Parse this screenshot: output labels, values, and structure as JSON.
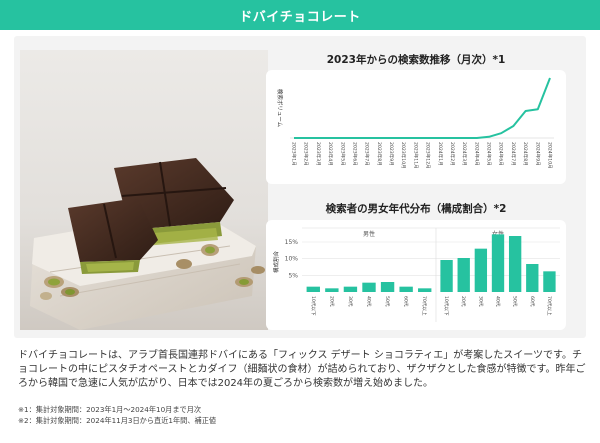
{
  "header": {
    "title": "ドバイチョコレート"
  },
  "chart1": {
    "title": "2023年からの検索数推移（月次）*1",
    "ylabel": "検索ボリューム",
    "months": [
      "2023年1月",
      "2023年2月",
      "2023年3月",
      "2023年4月",
      "2023年5月",
      "2023年6月",
      "2023年7月",
      "2023年8月",
      "2023年9月",
      "2023年10月",
      "2023年11月",
      "2023年12月",
      "2024年1月",
      "2024年2月",
      "2024年3月",
      "2024年4月",
      "2024年5月",
      "2024年6月",
      "2024年7月",
      "2024年8月",
      "2024年9月",
      "2024年10月"
    ]
  },
  "chart2": {
    "title": "検索者の男女年代分布（構成割合）*2",
    "ylabel": "構成割合",
    "yticks": [
      "15%",
      "10%",
      "5%"
    ],
    "male_label": "男性",
    "female_label": "女性",
    "age_labels": [
      "10代以下",
      "20代",
      "30代",
      "40代",
      "50代",
      "60代",
      "70代以上"
    ]
  },
  "chart_data": [
    {
      "type": "line",
      "title": "2023年からの検索数推移（月次）*1",
      "ylabel": "検索ボリューム",
      "x": [
        "2023年1月",
        "2023年2月",
        "2023年3月",
        "2023年4月",
        "2023年5月",
        "2023年6月",
        "2023年7月",
        "2023年8月",
        "2023年9月",
        "2023年10月",
        "2023年11月",
        "2023年12月",
        "2024年1月",
        "2024年2月",
        "2024年3月",
        "2024年4月",
        "2024年5月",
        "2024年6月",
        "2024年7月",
        "2024年8月",
        "2024年9月",
        "2024年10月"
      ],
      "values": [
        0,
        0,
        0,
        0,
        0,
        0,
        0,
        0,
        0,
        0,
        0,
        0,
        0,
        0,
        0,
        0,
        2,
        8,
        20,
        45,
        48,
        100
      ],
      "color": "#26c2a0"
    },
    {
      "type": "bar",
      "title": "検索者の男女年代分布（構成割合）*2",
      "ylabel": "構成割合",
      "ylim": [
        0,
        18
      ],
      "categories": [
        "10代以下",
        "20代",
        "30代",
        "40代",
        "50代",
        "60代",
        "70代以上"
      ],
      "series": [
        {
          "name": "男性",
          "values": [
            1.6,
            1.1,
            1.6,
            2.8,
            3.0,
            1.6,
            1.1
          ]
        },
        {
          "name": "女性",
          "values": [
            9.6,
            10.2,
            13.0,
            17.3,
            16.8,
            8.4,
            6.2
          ]
        }
      ],
      "color": "#26c2a0"
    }
  ],
  "description": "ドバイチョコレートは、アラブ首長国連邦ドバイにある「フィックス デザート ショコラティエ」が考案したスイーツです。チョコレートの中にピスタチオペーストとカダイフ（細麺状の食材）が詰められており、ザクザクとした食感が特徴です。昨年ごろから韓国で急速に人気が広がり、日本では2024年の夏ごろから検索数が増え始めました。",
  "notes": [
    "※1：集計対象期間：2023年1月〜2024年10月まで月次",
    "※2：集計対象期間：2024年11月3日から直近1年間、補正値"
  ]
}
